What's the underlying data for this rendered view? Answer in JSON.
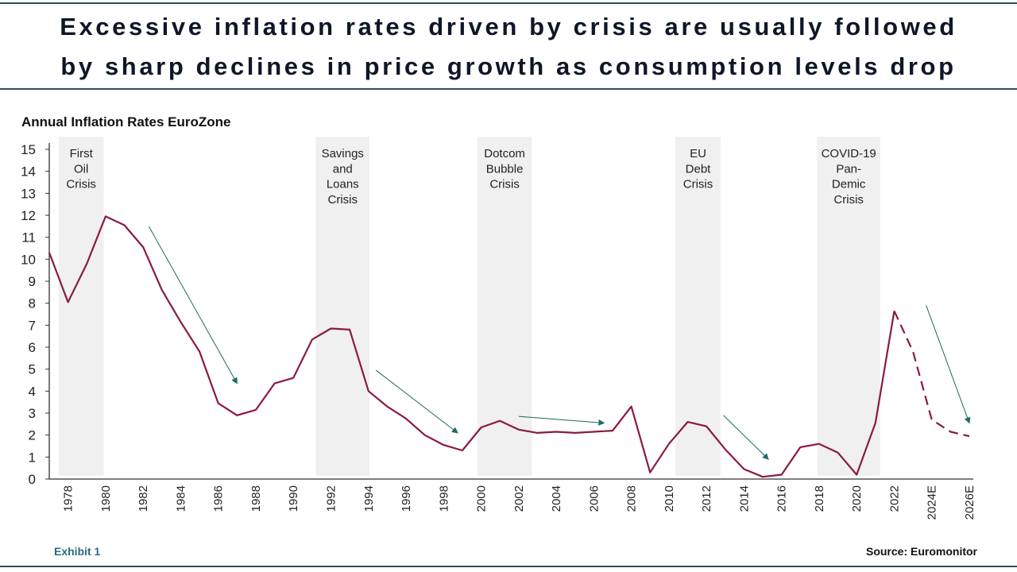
{
  "header": {
    "title_line1": "Excessive inflation rates driven by crisis are usually followed",
    "title_line2": "by sharp declines in price growth as consumption levels drop"
  },
  "footer": {
    "exhibit": "Exhibit 1",
    "source": "Source: Euromonitor"
  },
  "colors": {
    "line": "#8b1a3e",
    "arrow": "#1f6b62",
    "band": "#f0f0f0",
    "rule": "#2c4f5e"
  },
  "chart_data": {
    "type": "line",
    "title": "Annual Inflation Rates EuroZone",
    "ylim": [
      0,
      15
    ],
    "yticks": [
      0,
      1,
      2,
      3,
      4,
      5,
      6,
      7,
      8,
      9,
      10,
      11,
      12,
      13,
      14,
      15
    ],
    "xlim": [
      1977,
      2026
    ],
    "xticks": [
      {
        "x": 1978,
        "label": "1978"
      },
      {
        "x": 1980,
        "label": "1980"
      },
      {
        "x": 1982,
        "label": "1982"
      },
      {
        "x": 1984,
        "label": "1984"
      },
      {
        "x": 1986,
        "label": "1986"
      },
      {
        "x": 1988,
        "label": "1988"
      },
      {
        "x": 1990,
        "label": "1990"
      },
      {
        "x": 1992,
        "label": "1992"
      },
      {
        "x": 1994,
        "label": "1994"
      },
      {
        "x": 1996,
        "label": "1996"
      },
      {
        "x": 1998,
        "label": "1998"
      },
      {
        "x": 2000,
        "label": "2000"
      },
      {
        "x": 2002,
        "label": "2002"
      },
      {
        "x": 2004,
        "label": "2004"
      },
      {
        "x": 2006,
        "label": "2006"
      },
      {
        "x": 2008,
        "label": "2008"
      },
      {
        "x": 2010,
        "label": "2010"
      },
      {
        "x": 2012,
        "label": "2012"
      },
      {
        "x": 2014,
        "label": "2014"
      },
      {
        "x": 2016,
        "label": "2016"
      },
      {
        "x": 2018,
        "label": "2018"
      },
      {
        "x": 2020,
        "label": "2020"
      },
      {
        "x": 2022,
        "label": "2022"
      },
      {
        "x": 2024,
        "label": "2024E"
      },
      {
        "x": 2026,
        "label": "2026E"
      }
    ],
    "series": [
      {
        "style": "solid",
        "x": [
          1977,
          1978,
          1979,
          1980,
          1981,
          1982,
          1983,
          1984,
          1985,
          1986,
          1987,
          1988,
          1989,
          1990,
          1991,
          1992,
          1993,
          1994,
          1995,
          1996,
          1997,
          1998,
          1999,
          2000,
          2001,
          2002,
          2003,
          2004,
          2005,
          2006,
          2007,
          2008,
          2009,
          2010,
          2011,
          2012,
          2013,
          2014,
          2015,
          2016,
          2017,
          2018,
          2019,
          2020,
          2021,
          2022
        ],
        "values": [
          10.3,
          8.05,
          9.8,
          11.95,
          11.55,
          10.55,
          8.6,
          7.15,
          5.8,
          3.45,
          2.9,
          3.15,
          4.35,
          4.6,
          6.35,
          6.85,
          6.8,
          4.0,
          3.3,
          2.75,
          2.0,
          1.55,
          1.3,
          2.35,
          2.65,
          2.25,
          2.1,
          2.15,
          2.1,
          2.15,
          2.2,
          3.3,
          0.3,
          1.6,
          2.6,
          2.4,
          1.35,
          0.45,
          0.1,
          0.2,
          1.45,
          1.6,
          1.2,
          0.2,
          2.55,
          7.65
        ]
      },
      {
        "style": "dashed",
        "x": [
          2022,
          2023,
          2024,
          2025,
          2026
        ],
        "values": [
          7.65,
          5.8,
          2.7,
          2.15,
          1.95
        ]
      }
    ],
    "crisis_bands": [
      {
        "from": 1977.5,
        "to": 1979.9,
        "lines": [
          "First",
          "Oil",
          "Crisis"
        ]
      },
      {
        "from": 1991.2,
        "to": 1994.05,
        "lines": [
          "Savings",
          "and",
          "Loans",
          "Crisis"
        ]
      },
      {
        "from": 1999.8,
        "to": 2002.7,
        "lines": [
          "Dotcom",
          "Bubble",
          "Crisis"
        ]
      },
      {
        "from": 2010.35,
        "to": 2012.75,
        "lines": [
          "EU",
          "Debt",
          "Crisis"
        ]
      },
      {
        "from": 2017.9,
        "to": 2021.25,
        "lines": [
          "COVID-19",
          "Pan-",
          "Demic",
          "Crisis"
        ]
      }
    ],
    "trend_arrows": [
      {
        "from": [
          1982.3,
          11.5
        ],
        "to": [
          1987,
          4.35
        ]
      },
      {
        "from": [
          1994.4,
          4.95
        ],
        "to": [
          1998.75,
          2.1
        ]
      },
      {
        "from": [
          2002,
          2.85
        ],
        "to": [
          2006.55,
          2.55
        ]
      },
      {
        "from": [
          2012.9,
          2.9
        ],
        "to": [
          2015.3,
          0.9
        ]
      },
      {
        "from": [
          2023.7,
          7.9
        ],
        "to": [
          2026,
          2.55
        ]
      }
    ],
    "grid": false,
    "legend": "none"
  }
}
